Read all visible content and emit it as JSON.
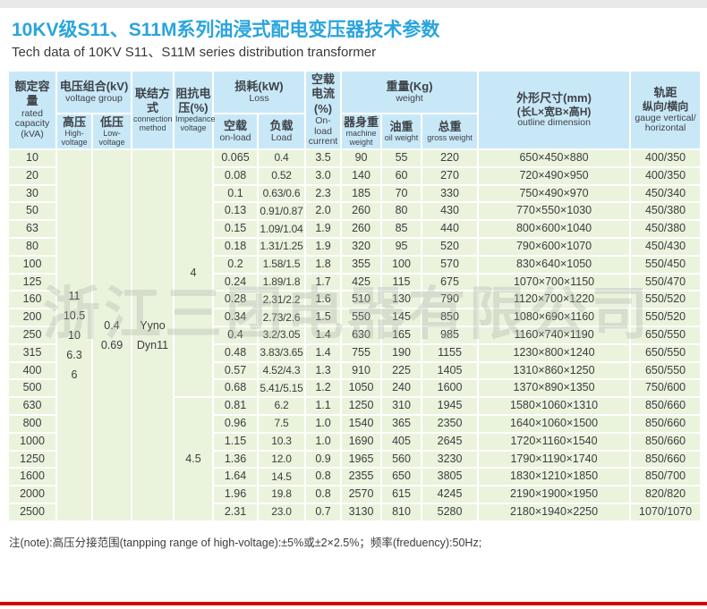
{
  "page": {
    "title": "10KV级S11、S11M系列油浸式配电变压器技术参数",
    "subtitle": "Tech data of 10KV S11、S11M series distribution transformer",
    "watermark": "浙江三团电器有限公司",
    "note": "注(note):高压分接范围(tanpping range of high-voltage):±5%或±2×2.5%；频率(freduency):50Hz;",
    "colors": {
      "title_blue": "#29a4dd",
      "header_bg": "#c9e8f7",
      "body_bg": "#eaf3dc",
      "grid": "#ffffff",
      "red_line": "#d60000"
    }
  },
  "table": {
    "header": {
      "rated_capacity_zh": "额定容量",
      "rated_capacity_en": "rated capacity",
      "rated_capacity_unit": "(kVA)",
      "voltage_group_zh": "电压组合(kV)",
      "voltage_group_en": "voltage group",
      "high_voltage_zh": "高压",
      "high_voltage_en": "High-voltage",
      "low_voltage_zh": "低压",
      "low_voltage_en": "Low-voltage",
      "connection_zh": "联结方式",
      "connection_en": "connection method",
      "impedance_zh": "阻抗电压(%)",
      "impedance_en": "Impedance voltage",
      "loss_zh": "损耗(kW)",
      "loss_en": "Loss",
      "loss_no_load_zh": "空载",
      "loss_no_load_en": "on-load",
      "loss_load_zh": "负载",
      "loss_load_en": "Load",
      "no_load_current_zh": "空载电流(%)",
      "no_load_current_en": "On-load current",
      "weight_zh": "重量(Kg)",
      "weight_en": "weight",
      "machine_weight_zh": "器身重",
      "machine_weight_en": "machine weight",
      "oil_weight_zh": "油重",
      "oil_weight_en": "oil weight",
      "gross_weight_zh": "总重",
      "gross_weight_en": "gross weight",
      "outline_zh": "外形尺寸(mm)",
      "outline_zh2": "(长L×宽B×高H)",
      "outline_en": "outline dimension",
      "gauge_zh": "轨距",
      "gauge_zh2": "纵向/横向",
      "gauge_en": "gauge vertical/ horizontal"
    },
    "merged": {
      "high_voltage": [
        "11",
        "10.5",
        "10",
        "6.3",
        "6"
      ],
      "low_voltage": [
        "0.4",
        "0.69"
      ],
      "connection": [
        "Yyno",
        "Dyn11"
      ],
      "impedance_a": "4",
      "impedance_a_rowspan": 14,
      "impedance_b": "4.5",
      "impedance_b_rowspan": 7
    },
    "rows": [
      {
        "capacity": "10",
        "loss_no_load": "0.065",
        "loss_load": "0.4",
        "current": "3.5",
        "machine": "90",
        "oil": "55",
        "gross": "220",
        "outline": "650×450×880",
        "gauge": "400/350"
      },
      {
        "capacity": "20",
        "loss_no_load": "0.08",
        "loss_load": "0.52",
        "current": "3.0",
        "machine": "140",
        "oil": "60",
        "gross": "270",
        "outline": "720×490×950",
        "gauge": "400/350"
      },
      {
        "capacity": "30",
        "loss_no_load": "0.1",
        "loss_load": "0.63/0.6",
        "current": "2.3",
        "machine": "185",
        "oil": "70",
        "gross": "330",
        "outline": "750×490×970",
        "gauge": "450/340"
      },
      {
        "capacity": "50",
        "loss_no_load": "0.13",
        "loss_load": "0.91/0.87",
        "current": "2.0",
        "machine": "260",
        "oil": "80",
        "gross": "430",
        "outline": "770×550×1030",
        "gauge": "450/380"
      },
      {
        "capacity": "63",
        "loss_no_load": "0.15",
        "loss_load": "1.09/1.04",
        "current": "1.9",
        "machine": "260",
        "oil": "85",
        "gross": "440",
        "outline": "800×600×1040",
        "gauge": "450/380"
      },
      {
        "capacity": "80",
        "loss_no_load": "0.18",
        "loss_load": "1.31/1.25",
        "current": "1.9",
        "machine": "320",
        "oil": "95",
        "gross": "520",
        "outline": "790×600×1070",
        "gauge": "450/430"
      },
      {
        "capacity": "100",
        "loss_no_load": "0.2",
        "loss_load": "1.58/1.5",
        "current": "1.8",
        "machine": "355",
        "oil": "100",
        "gross": "570",
        "outline": "830×640×1050",
        "gauge": "550/450"
      },
      {
        "capacity": "125",
        "loss_no_load": "0.24",
        "loss_load": "1.89/1.8",
        "current": "1.7",
        "machine": "425",
        "oil": "115",
        "gross": "675",
        "outline": "1070×700×1150",
        "gauge": "550/470"
      },
      {
        "capacity": "160",
        "loss_no_load": "0.28",
        "loss_load": "2.31/2.2",
        "current": "1.6",
        "machine": "510",
        "oil": "130",
        "gross": "790",
        "outline": "1120×700×1220",
        "gauge": "550/520"
      },
      {
        "capacity": "200",
        "loss_no_load": "0.34",
        "loss_load": "2.73/2.6",
        "current": "1.5",
        "machine": "550",
        "oil": "145",
        "gross": "850",
        "outline": "1080×690×1160",
        "gauge": "550/520"
      },
      {
        "capacity": "250",
        "loss_no_load": "0.4",
        "loss_load": "3.2/3.05",
        "current": "1.4",
        "machine": "630",
        "oil": "165",
        "gross": "985",
        "outline": "1160×740×1190",
        "gauge": "650/550"
      },
      {
        "capacity": "315",
        "loss_no_load": "0.48",
        "loss_load": "3.83/3.65",
        "current": "1.4",
        "machine": "755",
        "oil": "190",
        "gross": "1155",
        "outline": "1230×800×1240",
        "gauge": "650/550"
      },
      {
        "capacity": "400",
        "loss_no_load": "0.57",
        "loss_load": "4.52/4.3",
        "current": "1.3",
        "machine": "910",
        "oil": "225",
        "gross": "1405",
        "outline": "1310×860×1250",
        "gauge": "650/550"
      },
      {
        "capacity": "500",
        "loss_no_load": "0.68",
        "loss_load": "5.41/5.15",
        "current": "1.2",
        "machine": "1050",
        "oil": "240",
        "gross": "1600",
        "outline": "1370×890×1350",
        "gauge": "750/600"
      },
      {
        "capacity": "630",
        "loss_no_load": "0.81",
        "loss_load": "6.2",
        "current": "1.1",
        "machine": "1250",
        "oil": "310",
        "gross": "1945",
        "outline": "1580×1060×1310",
        "gauge": "850/660"
      },
      {
        "capacity": "800",
        "loss_no_load": "0.96",
        "loss_load": "7.5",
        "current": "1.0",
        "machine": "1540",
        "oil": "365",
        "gross": "2350",
        "outline": "1640×1060×1500",
        "gauge": "850/660"
      },
      {
        "capacity": "1000",
        "loss_no_load": "1.15",
        "loss_load": "10.3",
        "current": "1.0",
        "machine": "1690",
        "oil": "405",
        "gross": "2645",
        "outline": "1720×1160×1540",
        "gauge": "850/660"
      },
      {
        "capacity": "1250",
        "loss_no_load": "1.36",
        "loss_load": "12.0",
        "current": "0.9",
        "machine": "1965",
        "oil": "560",
        "gross": "3230",
        "outline": "1790×1190×1740",
        "gauge": "850/660"
      },
      {
        "capacity": "1600",
        "loss_no_load": "1.64",
        "loss_load": "14.5",
        "current": "0.8",
        "machine": "2355",
        "oil": "650",
        "gross": "3805",
        "outline": "1830×1210×1850",
        "gauge": "850/700"
      },
      {
        "capacity": "2000",
        "loss_no_load": "1.96",
        "loss_load": "19.8",
        "current": "0.8",
        "machine": "2570",
        "oil": "615",
        "gross": "4245",
        "outline": "2190×1900×1950",
        "gauge": "820/820"
      },
      {
        "capacity": "2500",
        "loss_no_load": "2.31",
        "loss_load": "23.0",
        "current": "0.7",
        "machine": "3130",
        "oil": "810",
        "gross": "5280",
        "outline": "2180×1940×2250",
        "gauge": "1070/1070"
      }
    ]
  }
}
